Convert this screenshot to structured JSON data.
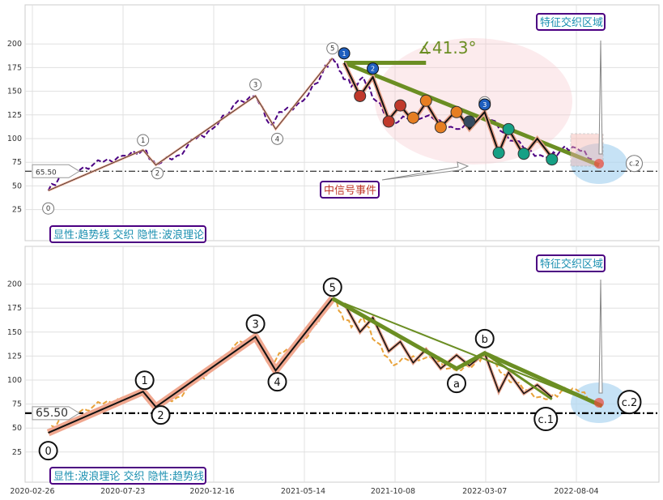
{
  "chart_data": [
    {
      "type": "line",
      "panel": "top",
      "ylim": [
        15,
        210
      ],
      "yticks": [
        "25",
        "50",
        "75",
        "100",
        "125",
        "150",
        "175",
        "200"
      ],
      "grid": true,
      "annotations": {
        "corner_box": "显性:趋势线 交织 隐性:波浪理论",
        "feature_box": "特征交织区域",
        "signal_box": "中信号事件",
        "angle_label": "∡41.3°",
        "ref_line_label": "65.50",
        "ref_line_value": 65.5,
        "wave_labels": [
          "0",
          "1",
          "2",
          "3",
          "4",
          "5",
          "b",
          "c.2"
        ],
        "sub_wave_markers": [
          "1",
          "2",
          "3"
        ]
      },
      "series": [
        {
          "style": "purple dashed price",
          "color": "#4b0082",
          "x": [
            "2020-03-23",
            "2020-04-15",
            "2020-05-20",
            "2020-06-20",
            "2020-07-23",
            "2020-08-25",
            "2020-09-15",
            "2020-10-20",
            "2020-11-20",
            "2020-12-16",
            "2021-01-20",
            "2021-02-25",
            "2021-03-20",
            "2021-04-10",
            "2021-05-14",
            "2021-06-15",
            "2021-07-01",
            "2021-07-15",
            "2021-08-01",
            "2021-08-20",
            "2021-09-10",
            "2021-10-08",
            "2021-11-10",
            "2021-12-15",
            "2022-01-20",
            "2022-02-20",
            "2022-03-07",
            "2022-04-10",
            "2022-05-10",
            "2022-06-15",
            "2022-07-10",
            "2022-08-04",
            "2022-08-30"
          ],
          "y": [
            45,
            60,
            70,
            75,
            82,
            88,
            72,
            82,
            100,
            110,
            135,
            145,
            115,
            128,
            140,
            170,
            185,
            170,
            155,
            165,
            140,
            115,
            125,
            120,
            110,
            118,
            125,
            105,
            90,
            80,
            88,
            90,
            78
          ]
        }
      ]
    },
    {
      "type": "line",
      "panel": "bottom",
      "ylim": [
        15,
        210
      ],
      "yticks": [
        "25",
        "50",
        "75",
        "100",
        "125",
        "150",
        "175",
        "200"
      ],
      "xticks": [
        "2020-02-26",
        "2020-07-23",
        "2020-12-16",
        "2021-05-14",
        "2021-10-08",
        "2022-03-07",
        "2022-08-04"
      ],
      "grid": true,
      "annotations": {
        "corner_box": "显性:波浪理论 交织 隐性:趋势线",
        "feature_box": "特征交织区域",
        "ref_line_label": "65.50",
        "ref_line_value": 65.5,
        "wave_labels": [
          "0",
          "1",
          "2",
          "3",
          "4",
          "5",
          "a",
          "b",
          "c.1",
          "c.2"
        ]
      },
      "series": [
        {
          "style": "orange dashed price",
          "color": "#e8a23a",
          "x": [
            "2020-03-23",
            "2020-04-15",
            "2020-05-20",
            "2020-06-20",
            "2020-07-23",
            "2020-08-25",
            "2020-09-15",
            "2020-10-20",
            "2020-11-20",
            "2020-12-16",
            "2021-01-20",
            "2021-02-25",
            "2021-03-20",
            "2021-04-10",
            "2021-05-14",
            "2021-06-15",
            "2021-07-01",
            "2021-07-15",
            "2021-08-01",
            "2021-08-20",
            "2021-09-10",
            "2021-10-08",
            "2021-11-10",
            "2021-12-15",
            "2022-01-20",
            "2022-02-20",
            "2022-03-07",
            "2022-04-10",
            "2022-05-10",
            "2022-06-15",
            "2022-07-10",
            "2022-08-04",
            "2022-08-30"
          ],
          "y": [
            45,
            60,
            70,
            75,
            82,
            88,
            72,
            82,
            100,
            110,
            135,
            145,
            115,
            128,
            140,
            170,
            185,
            170,
            155,
            165,
            140,
            115,
            125,
            120,
            110,
            118,
            125,
            105,
            90,
            80,
            88,
            90,
            78
          ]
        }
      ]
    }
  ]
}
